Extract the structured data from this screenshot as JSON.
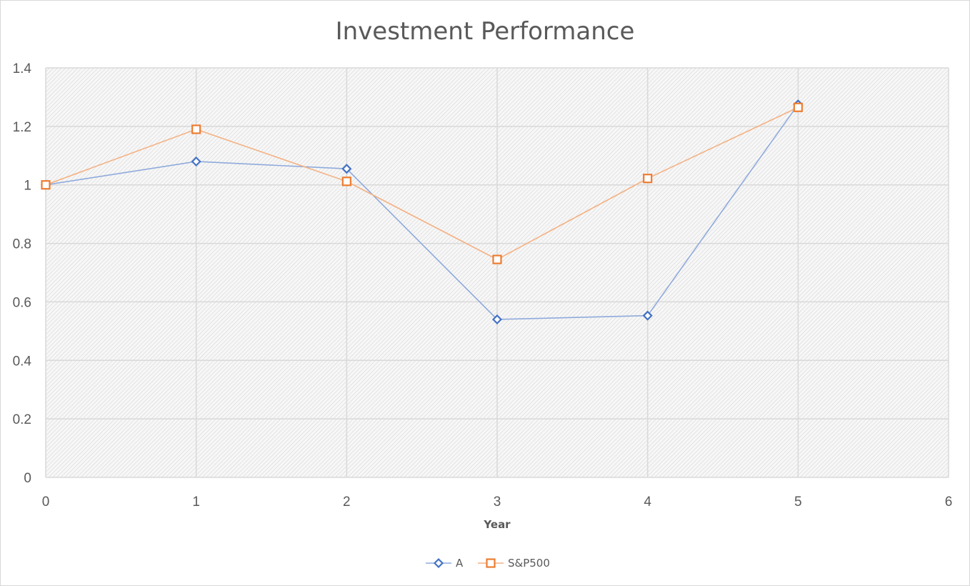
{
  "chart_data": {
    "type": "line",
    "title": "Investment Performance",
    "xlabel": "Year",
    "ylabel": "",
    "xlim": [
      0,
      6
    ],
    "ylim": [
      0,
      1.4
    ],
    "xticks": [
      "0",
      "1",
      "2",
      "3",
      "4",
      "5",
      "6"
    ],
    "yticks": [
      "0",
      "0.2",
      "0.4",
      "0.6",
      "0.8",
      "1",
      "1.2",
      "1.4"
    ],
    "grid": true,
    "legend_position": "bottom",
    "series": [
      {
        "name": "A",
        "color": "#4472c4",
        "line_color": "#8faadc",
        "marker": "diamond",
        "x": [
          0,
          1,
          2,
          3,
          4,
          5
        ],
        "y": [
          1.0,
          1.08,
          1.055,
          0.54,
          0.553,
          1.275
        ]
      },
      {
        "name": "S&P500",
        "color": "#ed7d31",
        "line_color": "#f4b183",
        "marker": "square",
        "x": [
          0,
          1,
          2,
          3,
          4,
          5
        ],
        "y": [
          1.0,
          1.19,
          1.012,
          0.745,
          1.022,
          1.265
        ]
      }
    ]
  }
}
